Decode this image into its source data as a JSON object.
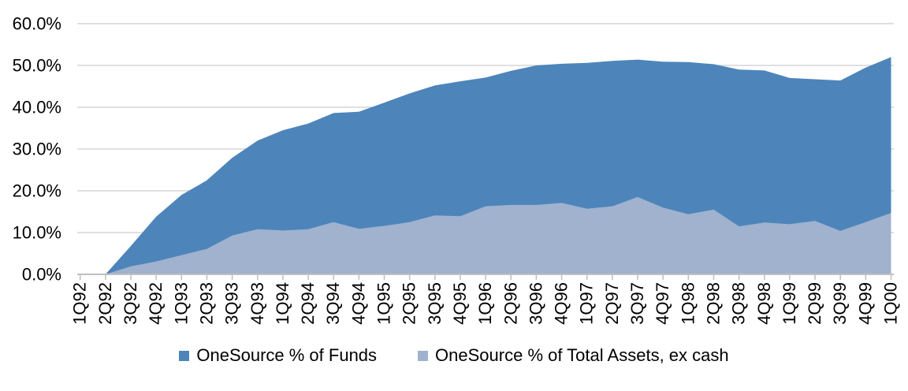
{
  "chart_data": {
    "type": "area",
    "title": "",
    "xlabel": "",
    "ylabel": "",
    "categories": [
      "1Q92",
      "2Q92",
      "3Q92",
      "4Q92",
      "1Q93",
      "2Q93",
      "3Q93",
      "4Q93",
      "1Q94",
      "2Q94",
      "3Q94",
      "4Q94",
      "1Q95",
      "2Q95",
      "3Q95",
      "4Q95",
      "1Q96",
      "2Q96",
      "3Q96",
      "4Q96",
      "1Q97",
      "2Q97",
      "3Q97",
      "4Q97",
      "1Q98",
      "2Q98",
      "3Q98",
      "4Q98",
      "1Q99",
      "2Q99",
      "3Q99",
      "4Q99",
      "1Q00"
    ],
    "series": [
      {
        "name": "OneSource % of Funds",
        "color": "#4D85BA",
        "values": [
          0.0,
          0.0,
          6.8,
          13.8,
          19.0,
          22.5,
          27.9,
          32.0,
          34.5,
          36.1,
          38.6,
          38.9,
          41.1,
          43.3,
          45.2,
          46.2,
          47.1,
          48.7,
          50.0,
          50.4,
          50.6,
          51.1,
          51.4,
          50.9,
          50.8,
          50.3,
          49.0,
          48.8,
          47.0,
          46.7,
          46.4,
          49.5,
          52.0
        ]
      },
      {
        "name": "OneSource % of Total Assets, ex cash",
        "color": "#A0B2CE",
        "values": [
          0.0,
          0.0,
          1.9,
          3.1,
          4.6,
          6.1,
          9.3,
          10.8,
          10.5,
          10.8,
          12.5,
          10.9,
          11.6,
          12.5,
          14.1,
          13.9,
          16.3,
          16.6,
          16.6,
          17.1,
          15.7,
          16.3,
          18.5,
          16.0,
          14.4,
          15.5,
          11.5,
          12.4,
          12.0,
          12.8,
          10.4,
          12.5,
          14.7
        ]
      }
    ],
    "ylim": [
      0,
      60
    ],
    "y_tick_step": 10,
    "y_tick_labels": [
      "0.0%",
      "10.0%",
      "20.0%",
      "30.0%",
      "40.0%",
      "50.0%",
      "60.0%"
    ],
    "grid": true,
    "legend_position": "bottom",
    "overlap_mode": "overlay",
    "grid_color": "#D5D5D5",
    "axis_color": "#BFBFBF",
    "text_color": "#000000",
    "background_color": "#FFFFFF"
  }
}
